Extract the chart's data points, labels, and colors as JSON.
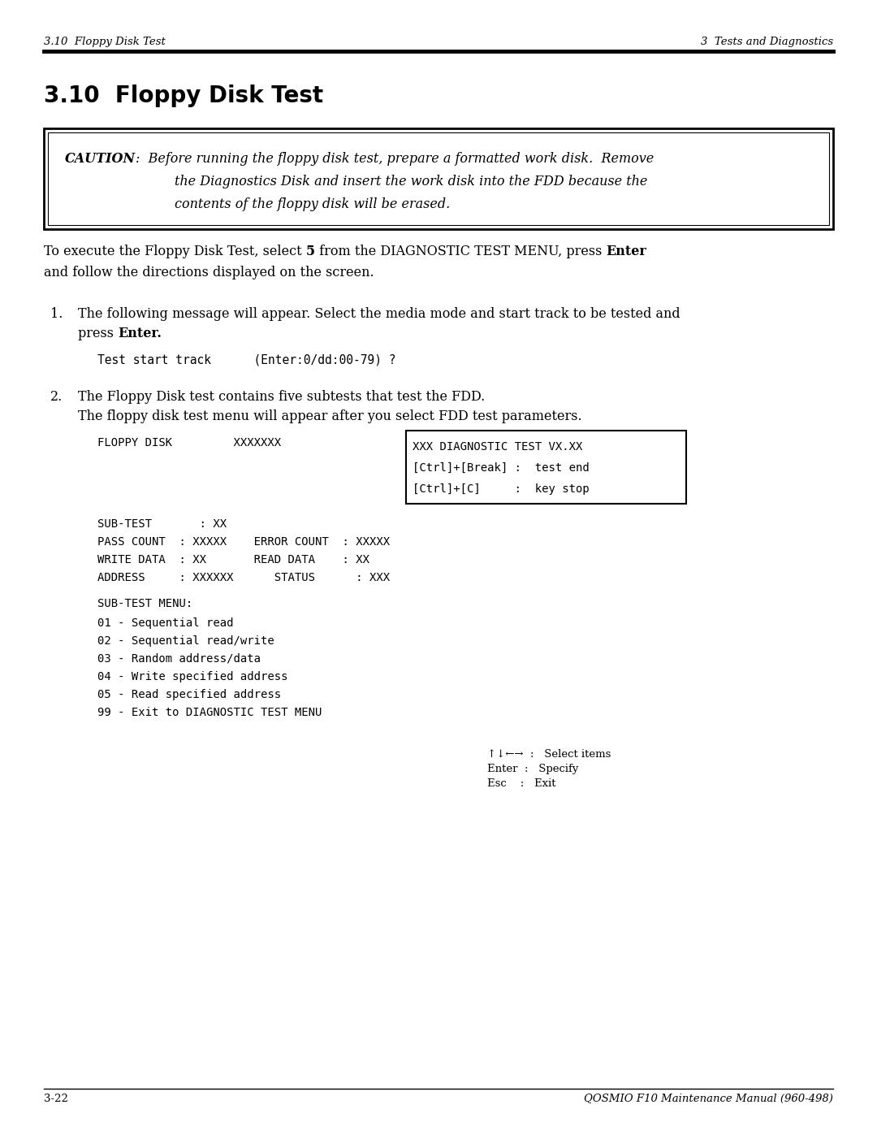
{
  "bg_color": "#ffffff",
  "header_left": "3.10  Floppy Disk Test",
  "header_right": "3  Tests and Diagnostics",
  "section_title": "3.10  Floppy Disk Test",
  "caution_bold": "CAUTION",
  "caution_colon": ":",
  "caution_line1": "  Before running the floppy disk test, prepare a formatted work disk.  Remove",
  "caution_line2": "the Diagnostics Disk and insert the work disk into the FDD because the",
  "caution_line3": "contents of the floppy disk will be erased.",
  "intro_line1_a": "To execute the Floppy Disk Test, select ",
  "intro_line1_b": "5",
  "intro_line1_c": " from the DIAGNOSTIC TEST MENU, press ",
  "intro_line1_d": "Enter",
  "intro_line2": "and follow the directions displayed on the screen.",
  "item1_line1": "The following message will appear. Select the media mode and start track to be tested and",
  "item1_line2a": "press ",
  "item1_line2b": "Enter.",
  "item1_code": "Test start track      (Enter:0/dd:00-79) ?",
  "item2_line1": "The Floppy Disk test contains five subtests that test the FDD.",
  "item2_line2": "The floppy disk test menu will appear after you select FDD test parameters.",
  "screen_left": "FLOPPY DISK         XXXXXXX",
  "screen_box_line1": "XXX DIAGNOSTIC TEST VX.XX",
  "screen_box_line2": "[Ctrl]+[Break] :  test end",
  "screen_box_line3": "[Ctrl]+[C]     :  key stop",
  "status_lines": [
    "SUB-TEST       : XX",
    "PASS COUNT  : XXXXX    ERROR COUNT  : XXXXX",
    "WRITE DATA  : XX       READ DATA    : XX",
    "ADDRESS     : XXXXXX      STATUS      : XXX"
  ],
  "submenu_header": "SUB-TEST MENU:",
  "submenu_items": [
    "01 - Sequential read",
    "02 - Sequential read/write",
    "03 - Random address/data",
    "04 - Write specified address",
    "05 - Read specified address",
    "99 - Exit to DIAGNOSTIC TEST MENU"
  ],
  "key_line1": "↑↓←→  :   Select items",
  "key_line2": "Enter  :   Specify",
  "key_line3": "Esc    :   Exit",
  "footer_left": "3-22",
  "footer_right": "QOSMIO F10 Maintenance Manual (960-498)"
}
